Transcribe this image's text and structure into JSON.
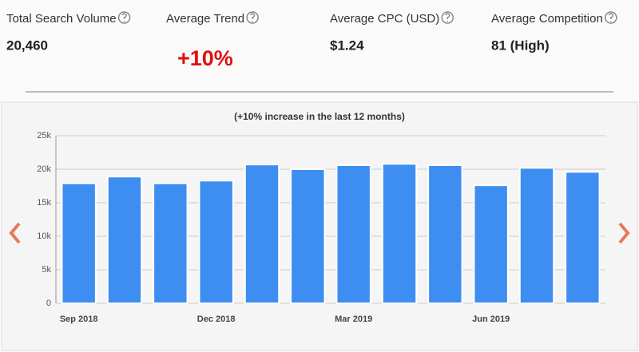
{
  "stats": [
    {
      "label": "Total Search Volume",
      "value": "20,460"
    },
    {
      "label": "Average Trend",
      "value": "+10%"
    },
    {
      "label": "Average CPC (USD)",
      "value": "$1.24"
    },
    {
      "label": "Average Competition",
      "value": "81 (High)"
    }
  ],
  "chart_data": {
    "type": "bar",
    "subtitle": "(+10% increase in the last 12 months)",
    "categories": [
      "Sep 2018",
      null,
      null,
      "Dec 2018",
      null,
      null,
      "Mar 2019",
      null,
      null,
      "Jun 2019",
      null,
      null
    ],
    "values": [
      17900,
      18900,
      17900,
      18300,
      20700,
      20000,
      20600,
      20800,
      20600,
      17600,
      20200,
      19600
    ],
    "color": "#3d8ef0",
    "ylim": [
      0,
      25000
    ],
    "yticks": [
      0,
      {
        "value": 5000,
        "label": "5k"
      },
      {
        "value": 10000,
        "label": "10k"
      },
      {
        "value": 15000,
        "label": "15k"
      },
      {
        "value": 20000,
        "label": "20k"
      },
      {
        "value": 25000,
        "label": "25k"
      }
    ],
    "grid": true
  }
}
